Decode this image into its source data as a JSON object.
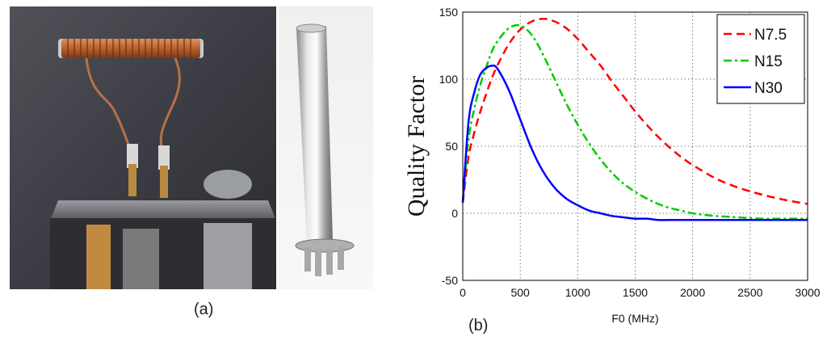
{
  "panel_a": {
    "caption": "(a)",
    "photo_description_icons": [
      "coil-photo",
      "metal-tube-photo"
    ]
  },
  "panel_b": {
    "caption": "(b)"
  },
  "chart_data": {
    "type": "line",
    "title": "",
    "xlabel": "F0 (MHz)",
    "ylabel": "Quality Factor",
    "xlim": [
      0,
      3000
    ],
    "ylim": [
      -50,
      150
    ],
    "xticks": [
      0,
      500,
      1000,
      1500,
      2000,
      2500,
      3000
    ],
    "yticks": [
      -50,
      0,
      50,
      100,
      150
    ],
    "grid": true,
    "legend": "top-right",
    "x": [
      0,
      50,
      100,
      150,
      200,
      250,
      300,
      400,
      500,
      600,
      700,
      800,
      900,
      1000,
      1100,
      1200,
      1300,
      1400,
      1500,
      1600,
      1700,
      1800,
      1900,
      2000,
      2200,
      2400,
      2600,
      2800,
      3000
    ],
    "series": [
      {
        "name": "N7.5",
        "color": "#ff0000",
        "dash": "dash",
        "values": [
          8,
          42,
          60,
          75,
          88,
          100,
          110,
          126,
          137,
          143,
          145,
          143,
          138,
          130,
          120,
          110,
          98,
          87,
          76,
          66,
          57,
          49,
          42,
          36,
          26,
          19,
          14,
          10,
          7
        ]
      },
      {
        "name": "N15",
        "color": "#00cc00",
        "dash": "dashdot",
        "values": [
          8,
          55,
          78,
          95,
          108,
          120,
          128,
          138,
          140,
          133,
          118,
          100,
          82,
          66,
          52,
          40,
          30,
          22,
          16,
          11,
          7,
          4,
          2,
          0,
          -2,
          -3,
          -4,
          -4,
          -4
        ]
      },
      {
        "name": "N30",
        "color": "#0000ff",
        "dash": "solid",
        "values": [
          8,
          68,
          90,
          103,
          108,
          110,
          108,
          92,
          70,
          48,
          31,
          19,
          11,
          6,
          2,
          0,
          -2,
          -3,
          -4,
          -4,
          -5,
          -5,
          -5,
          -5,
          -5,
          -5,
          -5,
          -5,
          -5
        ]
      }
    ]
  }
}
